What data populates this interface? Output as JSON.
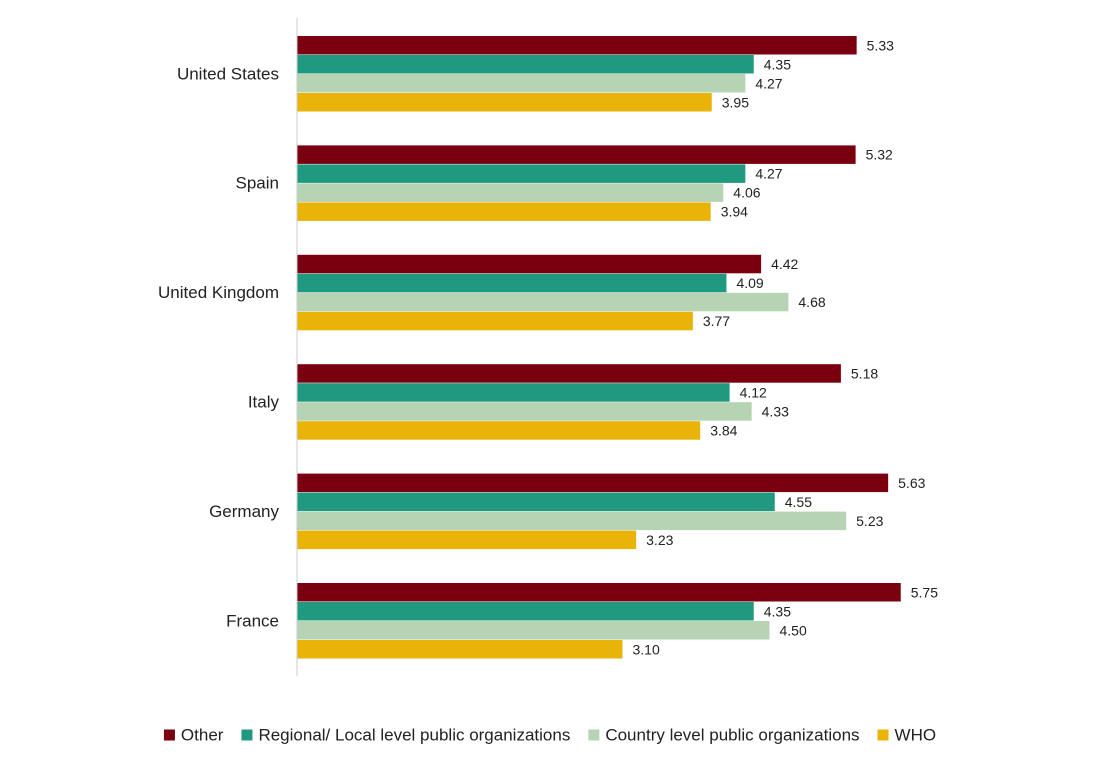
{
  "chart_data": {
    "type": "bar",
    "orientation": "horizontal",
    "categories": [
      "United States",
      "Spain",
      "United Kingdom",
      "Italy",
      "Germany",
      "France"
    ],
    "series": [
      {
        "name": "Other",
        "color": "#7a0010",
        "values": [
          5.33,
          5.32,
          4.42,
          5.18,
          5.63,
          5.75
        ]
      },
      {
        "name": "Regional/ Local level public organizations",
        "color": "#1f9a80",
        "values": [
          4.35,
          4.27,
          4.09,
          4.12,
          4.55,
          4.35
        ]
      },
      {
        "name": "Country level public organizations",
        "color": "#b6d3b4",
        "values": [
          4.27,
          4.06,
          4.68,
          4.33,
          5.23,
          4.5
        ]
      },
      {
        "name": "WHO",
        "color": "#eab308",
        "values": [
          3.95,
          3.94,
          3.77,
          3.84,
          3.23,
          3.1
        ]
      }
    ],
    "title": "",
    "xlabel": "",
    "ylabel": "",
    "xlim": [
      0,
      5.93
    ],
    "value_label_format": "2 decimals",
    "grid": false,
    "legend_position": "bottom"
  }
}
